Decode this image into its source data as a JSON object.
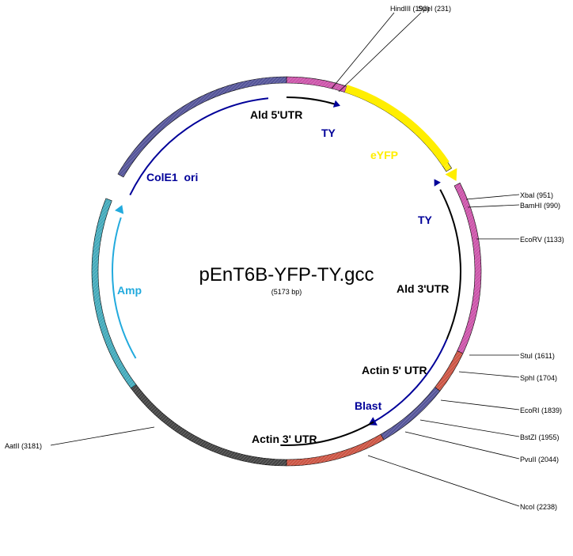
{
  "plasmid": {
    "name": "pEnT6B-YFP-TY.gcc",
    "size_label": "(5173 bp)",
    "length_bp": 5173
  },
  "colors": {
    "yellow": "#ffee00",
    "magenta": "#cc55aa",
    "blue": "#555599",
    "red": "#cc5544",
    "cyan": "#44aabb",
    "dark": "#444444",
    "navy": "#000099",
    "sky": "#22aadd"
  },
  "features": [
    {
      "id": "ald5utr",
      "label": "Ald 5'UTR",
      "color": "#000000"
    },
    {
      "id": "ty1",
      "label": "TY",
      "color": "#000099"
    },
    {
      "id": "eyfp",
      "label": "eYFP",
      "color": "#ffee00"
    },
    {
      "id": "ty2",
      "label": "TY",
      "color": "#000099"
    },
    {
      "id": "colE1",
      "label": "ColE1  ori",
      "color": "#000099"
    },
    {
      "id": "amp",
      "label": "Amp",
      "color": "#22aadd"
    },
    {
      "id": "ald3utr",
      "label": "Ald 3'UTR",
      "color": "#000000"
    },
    {
      "id": "actin5utr",
      "label": "Actin 5' UTR",
      "color": "#000000"
    },
    {
      "id": "blast",
      "label": "Blast",
      "color": "#000099"
    },
    {
      "id": "actin3utr",
      "label": "Actin 3' UTR",
      "color": "#000000"
    }
  ],
  "sites": [
    {
      "label": "HindIII (192)"
    },
    {
      "label": "SpeI (231)"
    },
    {
      "label": "XbaI (951)"
    },
    {
      "label": "BamHI (990)"
    },
    {
      "label": "EcoRV (1133)"
    },
    {
      "label": "StuI (1611)"
    },
    {
      "label": "SphI (1704)"
    },
    {
      "label": "EcoRI (1839)"
    },
    {
      "label": "BstZI (1955)"
    },
    {
      "label": "PvuII (2044)"
    },
    {
      "label": "NcoI (2238)"
    },
    {
      "label": "AatII (3181)"
    }
  ]
}
